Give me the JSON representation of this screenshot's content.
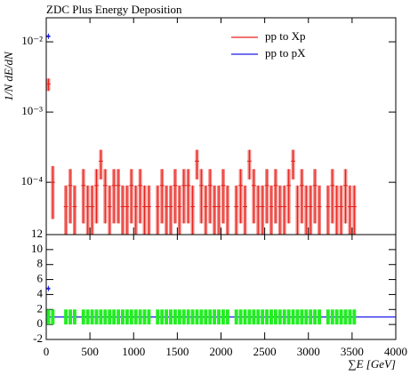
{
  "chart_data": [
    {
      "type": "histogram",
      "title": "ZDC Plus Energy Deposition",
      "y_label": "1/N dE/dN",
      "log_y": true,
      "legend": "upper right",
      "xlim": [
        0,
        4000
      ],
      "ylim": [
        1.8e-05,
        0.022
      ],
      "yticks": [
        {
          "value": 0.01,
          "label": "10⁻²"
        },
        {
          "value": 0.001,
          "label": "10⁻³"
        },
        {
          "value": 0.0001,
          "label": "10⁻⁴"
        }
      ],
      "bins": [
        0,
        50,
        100,
        150,
        200,
        250,
        300,
        350,
        400,
        450,
        500,
        550,
        600,
        650,
        700,
        750,
        800,
        850,
        900,
        950,
        1000,
        1050,
        1100,
        1150,
        1200,
        1250,
        1300,
        1350,
        1400,
        1450,
        1500,
        1550,
        1600,
        1650,
        1700,
        1750,
        1800,
        1850,
        1900,
        1950,
        2000,
        2050,
        2100,
        2150,
        2200,
        2250,
        2300,
        2350,
        2400,
        2450,
        2500,
        2550,
        2600,
        2650,
        2700,
        2750,
        2800,
        2850,
        2900,
        2950,
        3000,
        3050,
        3100,
        3150,
        3200,
        3250,
        3300,
        3350,
        3400,
        3450,
        3500,
        3550
      ],
      "series": [
        {
          "name": "pp to Xp",
          "color": "#e8201a",
          "values": [
            0.0025,
            0.0001,
            null,
            null,
            4.5e-05,
            9e-05,
            4.5e-05,
            null,
            9e-05,
            4.5e-05,
            4.5e-05,
            9e-05,
            0.0002,
            9e-05,
            4.5e-05,
            9e-05,
            9e-05,
            4.5e-05,
            4.5e-05,
            9e-05,
            4.5e-05,
            9e-05,
            4.5e-05,
            4.5e-05,
            null,
            4.5e-05,
            9e-05,
            4.5e-05,
            4.5e-05,
            9e-05,
            4.5e-05,
            9e-05,
            9e-05,
            4.5e-05,
            0.0002,
            9e-05,
            4.5e-05,
            9e-05,
            4.5e-05,
            4.5e-05,
            9e-05,
            4.5e-05,
            null,
            4.5e-05,
            9e-05,
            4.5e-05,
            0.0002,
            9e-05,
            4.5e-05,
            4.5e-05,
            9e-05,
            4.5e-05,
            9e-05,
            4.5e-05,
            4.5e-05,
            9e-05,
            0.0002,
            4.5e-05,
            9e-05,
            4.5e-05,
            4.5e-05,
            9e-05,
            4.5e-05,
            null,
            4.5e-05,
            9e-05,
            4.5e-05,
            4.5e-05,
            9e-05,
            4.5e-05,
            4.5e-05
          ],
          "errors": [
            0.0005,
            7e-05,
            null,
            null,
            4.5e-05,
            6.4e-05,
            4.5e-05,
            null,
            6.4e-05,
            4.5e-05,
            4.5e-05,
            6.4e-05,
            9e-05,
            6.4e-05,
            4.5e-05,
            6.4e-05,
            6.4e-05,
            4.5e-05,
            4.5e-05,
            6.4e-05,
            4.5e-05,
            6.4e-05,
            4.5e-05,
            4.5e-05,
            null,
            4.5e-05,
            6.4e-05,
            4.5e-05,
            4.5e-05,
            6.4e-05,
            4.5e-05,
            6.4e-05,
            6.4e-05,
            4.5e-05,
            9e-05,
            6.4e-05,
            4.5e-05,
            6.4e-05,
            4.5e-05,
            4.5e-05,
            6.4e-05,
            4.5e-05,
            null,
            4.5e-05,
            6.4e-05,
            4.5e-05,
            9e-05,
            6.4e-05,
            4.5e-05,
            4.5e-05,
            6.4e-05,
            4.5e-05,
            6.4e-05,
            4.5e-05,
            4.5e-05,
            6.4e-05,
            9e-05,
            4.5e-05,
            6.4e-05,
            4.5e-05,
            4.5e-05,
            6.4e-05,
            4.5e-05,
            null,
            4.5e-05,
            6.4e-05,
            4.5e-05,
            4.5e-05,
            6.4e-05,
            4.5e-05,
            4.5e-05
          ]
        },
        {
          "name": "pp to pX",
          "color": "#1a1ae8",
          "x": [
            25
          ],
          "values": [
            0.012
          ]
        }
      ]
    },
    {
      "type": "histogram",
      "x_label": "∑E [GeV]",
      "xlim": [
        0,
        4000
      ],
      "xticks": [
        0,
        500,
        1000,
        1500,
        2000,
        2500,
        3000,
        3500,
        4000
      ],
      "ylim": [
        -2,
        12
      ],
      "yticks": [
        -2,
        0,
        2,
        4,
        6,
        8,
        10,
        12
      ],
      "reference": 1,
      "reference_color": "#1a1ae8",
      "bins": [
        0,
        50,
        100,
        150,
        200,
        250,
        300,
        350,
        400,
        450,
        500,
        550,
        600,
        650,
        700,
        750,
        800,
        850,
        900,
        950,
        1000,
        1050,
        1100,
        1150,
        1200,
        1250,
        1300,
        1350,
        1400,
        1450,
        1500,
        1550,
        1600,
        1650,
        1700,
        1750,
        1800,
        1850,
        1900,
        1950,
        2000,
        2050,
        2100,
        2150,
        2200,
        2250,
        2300,
        2350,
        2400,
        2450,
        2500,
        2550,
        2600,
        2650,
        2700,
        2750,
        2800,
        2850,
        2900,
        2950,
        3000,
        3050,
        3100,
        3150,
        3200,
        3250,
        3300,
        3350,
        3400,
        3450,
        3500,
        3550
      ],
      "series": [
        {
          "color": "#22ee22",
          "values": [
            1,
            1,
            null,
            null,
            1,
            1,
            1,
            null,
            1,
            1,
            1,
            1,
            1,
            1,
            1,
            1,
            1,
            1,
            1,
            1,
            1,
            1,
            1,
            1,
            null,
            1,
            1,
            1,
            1,
            1,
            1,
            1,
            1,
            1,
            1,
            1,
            1,
            1,
            1,
            1,
            1,
            1,
            null,
            1,
            1,
            1,
            1,
            1,
            1,
            1,
            1,
            1,
            1,
            1,
            1,
            1,
            1,
            1,
            1,
            1,
            1,
            1,
            1,
            null,
            1,
            1,
            1,
            1,
            1,
            1,
            1
          ],
          "errors": [
            1,
            1,
            null,
            null,
            1,
            1,
            1,
            null,
            1,
            1,
            1,
            1,
            1,
            1,
            1,
            1,
            1,
            1,
            1,
            1,
            1,
            1,
            1,
            1,
            null,
            1,
            1,
            1,
            1,
            1,
            1,
            1,
            1,
            1,
            1,
            1,
            1,
            1,
            1,
            1,
            1,
            1,
            null,
            1,
            1,
            1,
            1,
            1,
            1,
            1,
            1,
            1,
            1,
            1,
            1,
            1,
            1,
            1,
            1,
            1,
            1,
            1,
            1,
            null,
            1,
            1,
            1,
            1,
            1,
            1,
            1
          ]
        },
        {
          "color": "#1a1ae8",
          "x": [
            25
          ],
          "values": [
            4.8
          ]
        }
      ]
    }
  ]
}
